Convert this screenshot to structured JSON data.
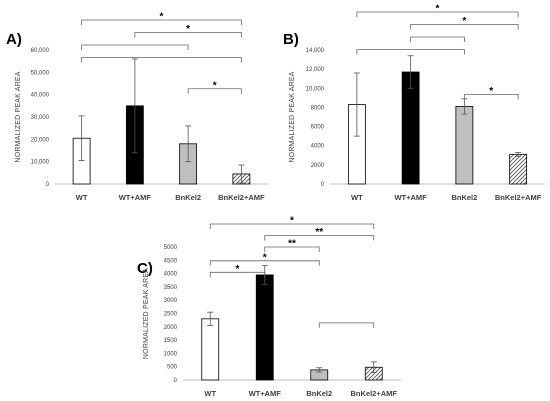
{
  "chart_data": [
    {
      "type": "bar",
      "panel": "A)",
      "categories": [
        "WT",
        "WT+AMF",
        "BnKel2",
        "BnKel2+AMF"
      ],
      "values": [
        20500,
        35000,
        18000,
        4500
      ],
      "errors": [
        10000,
        21000,
        8000,
        4000
      ],
      "fills": [
        "#ffffff",
        "#000000",
        "#bfbfbf",
        "hatch"
      ],
      "ylabel": "NORMALIZED PEAK AREA",
      "ylim": [
        0,
        60000
      ],
      "yticks": [
        0,
        10000,
        20000,
        30000,
        40000,
        50000,
        60000
      ],
      "yticklabels": [
        "0",
        "10,000",
        "20,000",
        "30,000",
        "40,000",
        "50,000",
        "60,000"
      ],
      "significance": [
        {
          "from": 0,
          "to": 3,
          "label": "*"
        },
        {
          "from": 1,
          "to": 3,
          "label": "*"
        },
        {
          "from": 0,
          "to": 2,
          "label": ""
        },
        {
          "from": 0,
          "to": 3,
          "label": ""
        },
        {
          "from": 2,
          "to": 3,
          "label": "*"
        }
      ]
    },
    {
      "type": "bar",
      "panel": "B)",
      "categories": [
        "WT",
        "WT+AMF",
        "BnKel2",
        "BnKel2+AMF"
      ],
      "values": [
        8300,
        11700,
        8100,
        3100
      ],
      "errors": [
        3300,
        1700,
        800,
        200
      ],
      "fills": [
        "#ffffff",
        "#000000",
        "#bfbfbf",
        "hatch"
      ],
      "ylabel": "NORMALIZED PEAK AREA",
      "ylim": [
        0,
        14000
      ],
      "yticks": [
        0,
        2000,
        4000,
        6000,
        8000,
        10000,
        12000,
        14000
      ],
      "yticklabels": [
        "0",
        "2000",
        "4000",
        "6000",
        "8000",
        "10,000",
        "12,000",
        "14,000"
      ],
      "significance": [
        {
          "from": 0,
          "to": 3,
          "label": "*"
        },
        {
          "from": 1,
          "to": 3,
          "label": "*"
        },
        {
          "from": 1,
          "to": 2,
          "label": ""
        },
        {
          "from": 0,
          "to": 2,
          "label": ""
        },
        {
          "from": 2,
          "to": 3,
          "label": "*"
        }
      ]
    },
    {
      "type": "bar",
      "panel": "C)",
      "categories": [
        "WT",
        "WT+AMF",
        "BnKel2",
        "BnKel2+AMF"
      ],
      "values": [
        2300,
        3950,
        380,
        480
      ],
      "errors": [
        250,
        350,
        80,
        200
      ],
      "fills": [
        "#ffffff",
        "#000000",
        "#bfbfbf",
        "hatch"
      ],
      "ylabel": "NORMALIZED PEAK AREA",
      "ylim": [
        0,
        5000
      ],
      "yticks": [
        0,
        500,
        1000,
        1500,
        2000,
        2500,
        3000,
        3500,
        4000,
        4500,
        5000
      ],
      "yticklabels": [
        "0",
        "500",
        "1000",
        "1500",
        "2000",
        "2500",
        "3000",
        "3500",
        "4000",
        "4500",
        "5000"
      ],
      "significance": [
        {
          "from": 0,
          "to": 3,
          "label": "*"
        },
        {
          "from": 1,
          "to": 3,
          "label": "**"
        },
        {
          "from": 1,
          "to": 2,
          "label": "**"
        },
        {
          "from": 0,
          "to": 2,
          "label": "*"
        },
        {
          "from": 0,
          "to": 1,
          "label": "*"
        },
        {
          "from": 2,
          "to": 3,
          "label": ""
        }
      ]
    }
  ]
}
